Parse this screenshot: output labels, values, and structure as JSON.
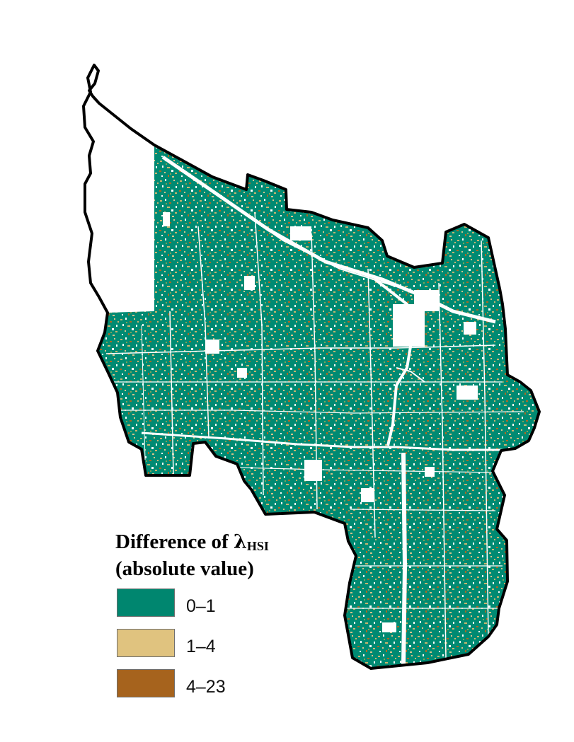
{
  "legend": {
    "title_prefix": "Difference of ",
    "title_symbol": "λ",
    "title_subscript": "HSI",
    "title_line2": "(absolute value)",
    "classes": [
      {
        "label": "0–1",
        "color": "#00866f"
      },
      {
        "label": "1–4",
        "color": "#e0c37f"
      },
      {
        "label": "4–23",
        "color": "#a6631d"
      }
    ]
  },
  "map": {
    "boundary_color": "#000000",
    "background_color": "#ffffff",
    "road_color": "#ffffff"
  }
}
